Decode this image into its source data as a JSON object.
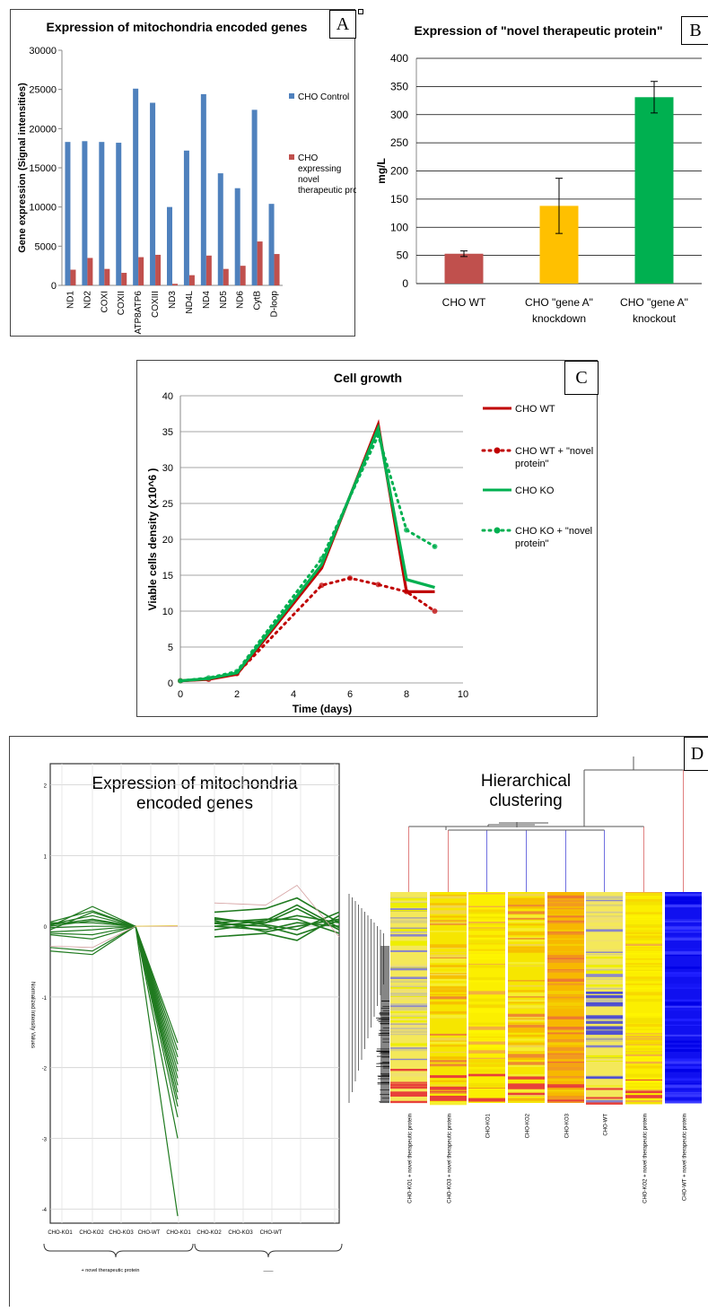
{
  "panels": {
    "a": "A",
    "b": "B",
    "c": "C",
    "d": "D"
  },
  "chart_data": [
    {
      "id": "A",
      "type": "bar",
      "title": "Expression of mitochondria encoded genes",
      "ylabel": "Gene expression (Signal intensities)",
      "xlabel": "",
      "ylim": [
        0,
        30000
      ],
      "yticks": [
        "0",
        "5000",
        "10000",
        "15000",
        "20000",
        "25000",
        "30000"
      ],
      "categories": [
        "ND1",
        "ND2",
        "COXI",
        "COXII",
        "ATP8ATP6",
        "COXIII",
        "ND3",
        "ND4L",
        "ND4",
        "ND5",
        "ND6",
        "CytB",
        "D-loop"
      ],
      "series": [
        {
          "name": "CHO Control",
          "color": "#4f81bd",
          "values": [
            18300,
            18400,
            18300,
            18200,
            25100,
            23300,
            10000,
            17200,
            24400,
            14300,
            12400,
            22400,
            10400
          ]
        },
        {
          "name": "CHO expressing novel therapeutic protein",
          "color": "#c0504d",
          "values": [
            2000,
            3500,
            2100,
            1600,
            3600,
            3900,
            200,
            1300,
            3800,
            2100,
            2500,
            5600,
            4000
          ]
        }
      ],
      "legend": [
        "CHO Control",
        "CHO expressing novel therapeutic protein"
      ],
      "legend_position": "right"
    },
    {
      "id": "B",
      "type": "bar",
      "title": "Expression of \"novel therapeutic protein\"",
      "ylabel": "mg/L",
      "xlabel": "",
      "ylim": [
        0,
        400
      ],
      "yticks": [
        "0",
        "50",
        "100",
        "150",
        "200",
        "250",
        "300",
        "350",
        "400"
      ],
      "categories": [
        "CHO WT",
        "CHO \"gene A\" knockdown",
        "CHO \"gene A\" knockout"
      ],
      "category_lines": [
        [
          "CHO WT"
        ],
        [
          "CHO \"gene A\"",
          "knockdown"
        ],
        [
          "CHO \"gene A\"",
          "knockout"
        ]
      ],
      "values": [
        53,
        138,
        331
      ],
      "errors": [
        5,
        49,
        28
      ],
      "colors": [
        "#c0504d",
        "#ffc000",
        "#00b050"
      ]
    },
    {
      "id": "C",
      "type": "line",
      "title": "Cell growth",
      "xlabel": "Time (days)",
      "ylabel": "Viable cells density (x10^6 )",
      "xlim": [
        0,
        10
      ],
      "ylim": [
        0,
        40
      ],
      "xticks": [
        "0",
        "2",
        "4",
        "6",
        "8",
        "10"
      ],
      "yticks": [
        "0",
        "5",
        "10",
        "15",
        "20",
        "25",
        "30",
        "35",
        "40"
      ],
      "series": [
        {
          "name": "CHO WT",
          "color": "#c00000",
          "dashed": false,
          "markers": false,
          "x": [
            0,
            1,
            2,
            5,
            7,
            8,
            9
          ],
          "y": [
            0.3,
            0.5,
            1.2,
            16,
            36,
            12.7,
            12.7
          ]
        },
        {
          "name": "CHO WT + \"novel protein\"",
          "lines": [
            "CHO WT + \"novel",
            "protein\""
          ],
          "color": "#c00000",
          "dashed": true,
          "markers": true,
          "x": [
            0,
            1,
            2,
            5,
            6,
            7,
            8,
            9
          ],
          "y": [
            0.3,
            0.5,
            1.3,
            13.6,
            14.6,
            13.7,
            12.7,
            10
          ]
        },
        {
          "name": "CHO KO",
          "color": "#00b050",
          "dashed": false,
          "markers": false,
          "x": [
            0,
            1,
            2,
            5,
            7,
            8,
            9
          ],
          "y": [
            0.3,
            0.6,
            1.4,
            16.5,
            35.5,
            14.4,
            13.3
          ]
        },
        {
          "name": "CHO KO + \"novel protein\"",
          "lines": [
            "CHO KO + \"novel",
            "protein\""
          ],
          "color": "#00b050",
          "dashed": true,
          "markers": true,
          "x": [
            0,
            1,
            2,
            5,
            7,
            8,
            9
          ],
          "y": [
            0.3,
            0.7,
            1.6,
            17.3,
            34.5,
            21.3,
            19
          ]
        }
      ],
      "legend_position": "right",
      "grid": true
    },
    {
      "id": "D-left",
      "type": "line",
      "title": "Expression of mitochondria encoded genes",
      "title_lines": [
        "Expression of mitochondria",
        "encoded genes"
      ],
      "ylabel": "Normalized Intensity Values",
      "ylim": [
        -4.2,
        2.3
      ],
      "yticks": [
        "2",
        "1",
        "0",
        "-1",
        "-2",
        "-3",
        "-4"
      ],
      "categories": [
        "CHO-KO1",
        "CHO-KO2",
        "CHO-KO3",
        "CHO-WT",
        "CHO-KO1",
        "CHO-KO2",
        "CHO-KO3",
        "CHO-WT"
      ],
      "group_labels": [
        "+ novel therapeutic protein",
        "——"
      ],
      "profiles_left": [
        [
          0.0,
          0.28,
          0.0,
          -1.65
        ],
        [
          -0.05,
          0.2,
          0.0,
          -1.75
        ],
        [
          0.02,
          0.1,
          0.0,
          -1.85
        ],
        [
          -0.35,
          -0.4,
          0.0,
          -1.95
        ],
        [
          0.05,
          0.05,
          0.0,
          -2.05
        ],
        [
          -0.1,
          -0.12,
          0.0,
          -2.15
        ],
        [
          0.0,
          0.08,
          0.0,
          -2.25
        ],
        [
          -0.08,
          -0.05,
          0.0,
          -2.35
        ],
        [
          0.03,
          0.15,
          0.0,
          -2.45
        ],
        [
          -0.3,
          -0.35,
          0.0,
          -2.55
        ],
        [
          -0.02,
          0.0,
          0.0,
          -2.7
        ],
        [
          0.06,
          0.22,
          0.0,
          -3.0
        ],
        [
          -0.12,
          -0.18,
          0.0,
          -4.1
        ]
      ],
      "profiles_right": [
        [
          0.1,
          0.05,
          0.25,
          -0.05
        ],
        [
          0.0,
          -0.05,
          0.05,
          0.0
        ],
        [
          0.2,
          0.25,
          0.4,
          0.05
        ],
        [
          -0.15,
          -0.1,
          -0.2,
          0.15
        ],
        [
          0.05,
          0.1,
          0.1,
          -0.1
        ],
        [
          0.12,
          0.02,
          -0.05,
          0.2
        ],
        [
          -0.05,
          0.05,
          0.15,
          0.05
        ],
        [
          0.08,
          -0.08,
          0.0,
          0.1
        ],
        [
          0.0,
          0.08,
          0.3,
          -0.02
        ],
        [
          0.04,
          0.0,
          -0.12,
          0.08
        ]
      ]
    },
    {
      "id": "D-right",
      "type": "heatmap",
      "title": "Hierarchical clustering",
      "title_lines": [
        "Hierarchical",
        "clustering"
      ],
      "columns": [
        "CHO-KO1 + novel therapeutic protein",
        "CHO-KO3 + novel therapeutic protein",
        "CHO-KO1",
        "CHO-KO2",
        "CHO-KO3",
        "CHO-WT",
        "CHO-KO2 + novel therapeutic protein",
        "CHO-WT + novel therapeutic protein"
      ],
      "column_tones": [
        "gray-yellow",
        "yellow-orange",
        "yellow",
        "yellow-orange",
        "orange",
        "gray-yellow",
        "yellow",
        "blue"
      ]
    }
  ]
}
